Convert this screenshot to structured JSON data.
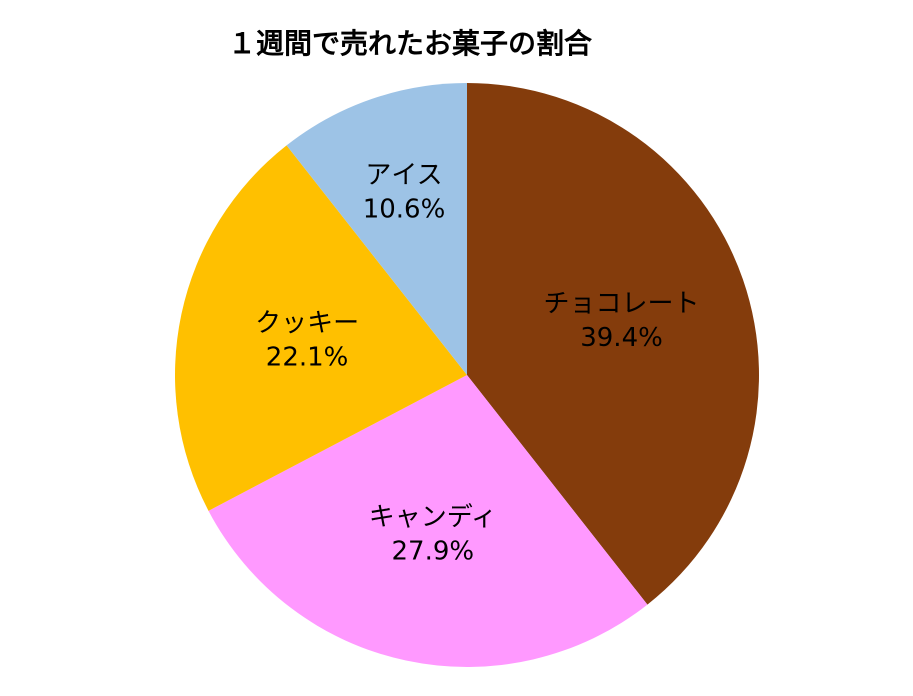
{
  "chart_data": {
    "type": "pie",
    "title": "１週間で売れたお菓子の割合",
    "categories": [
      "チョコレート",
      "キャンディ",
      "クッキー",
      "アイス"
    ],
    "values": [
      39.4,
      27.9,
      22.1,
      10.6
    ],
    "value_labels": [
      "39.4%",
      "27.9%",
      "22.1%",
      "10.6%"
    ],
    "colors": [
      "#843c0c",
      "#ff99ff",
      "#ffc000",
      "#9dc3e6"
    ]
  }
}
